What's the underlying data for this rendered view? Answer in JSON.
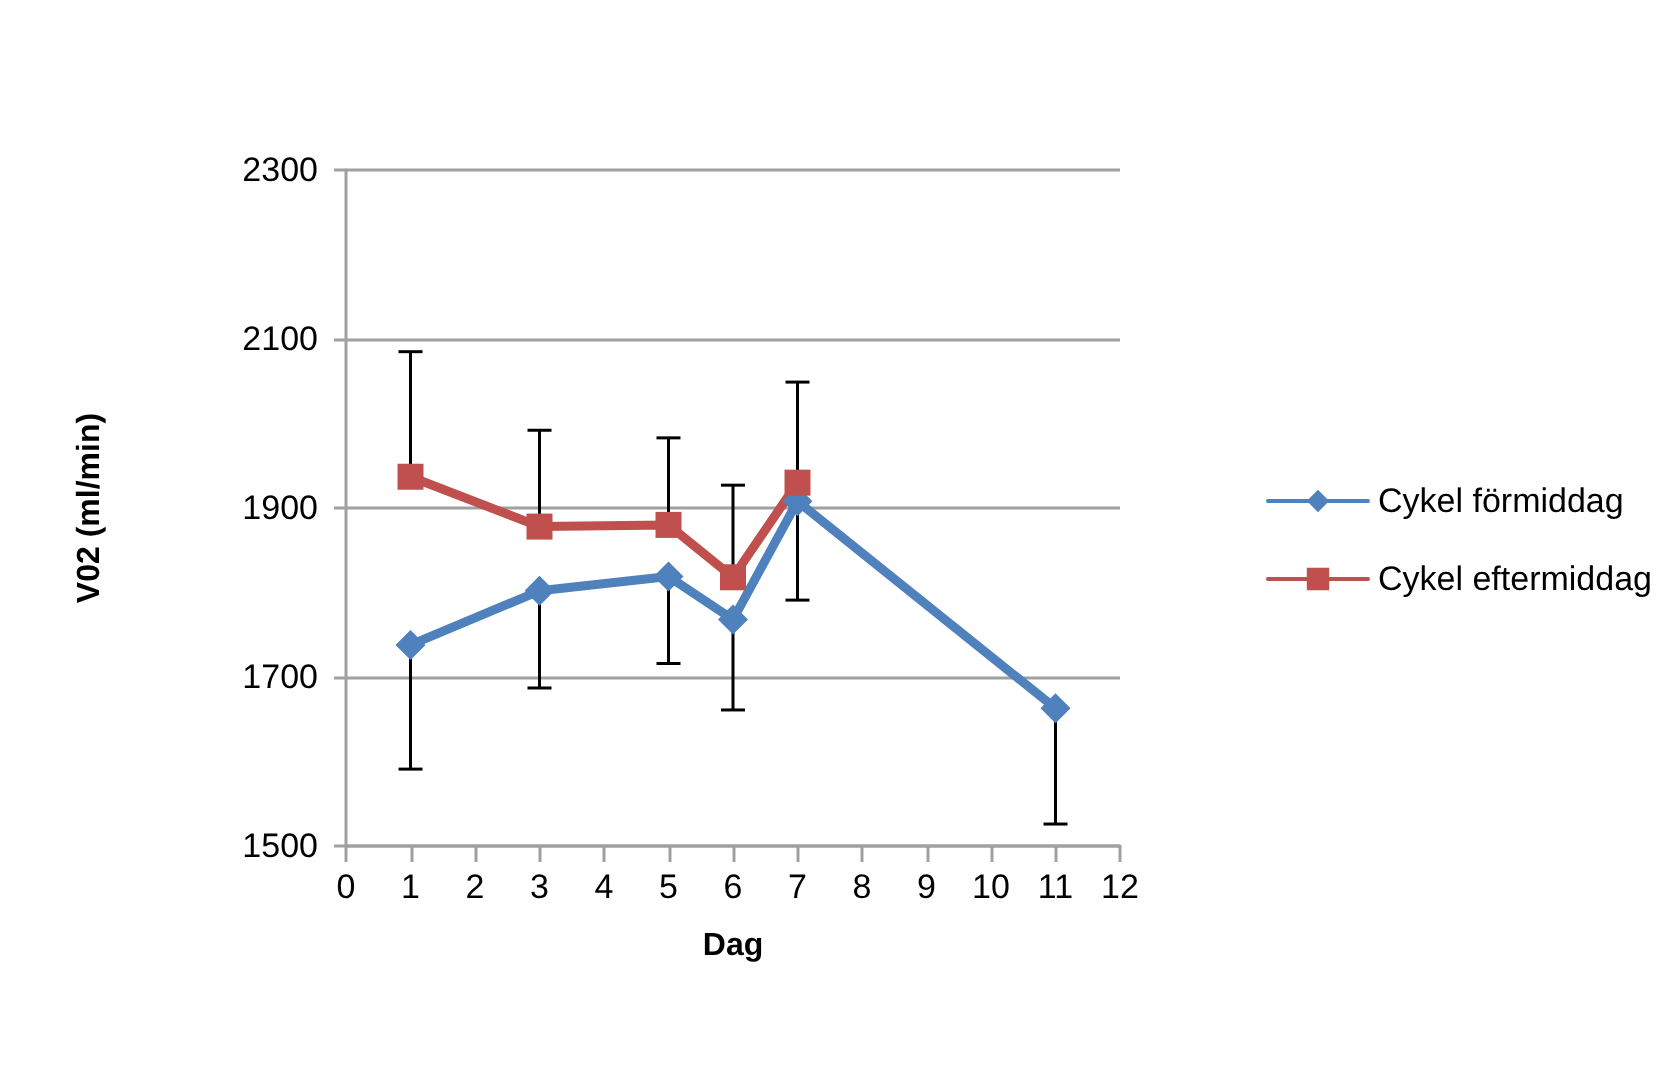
{
  "chart_data": {
    "type": "line",
    "xlabel": "Dag",
    "ylabel": "V02 (ml/min)",
    "x": [
      1,
      3,
      5,
      6,
      7,
      11
    ],
    "series": [
      {
        "name": "Cykel förmiddag",
        "color": "#4f81bd",
        "marker": "diamond",
        "values": [
          1738,
          1802,
          1819,
          1768,
          1908,
          1663
        ],
        "errors": [
          [
            1591,
            1738
          ],
          [
            1687,
            1802
          ],
          [
            1716,
            1819
          ],
          [
            1661,
            1768
          ],
          [
            1791,
            1908
          ],
          [
            1526,
            1663
          ]
        ]
      },
      {
        "name": "Cykel eftermiddag",
        "color": "#c0504d",
        "marker": "square",
        "x": [
          1,
          3,
          5,
          6,
          7
        ],
        "values": [
          1937,
          1878,
          1880,
          1818,
          1930
        ],
        "errors": [
          [
            1937,
            2085
          ],
          [
            1878,
            1992
          ],
          [
            1880,
            1983
          ],
          [
            1818,
            1927
          ],
          [
            1930,
            2049
          ]
        ]
      }
    ],
    "xlim": [
      0,
      12
    ],
    "xticks": [
      0,
      1,
      2,
      3,
      4,
      5,
      6,
      7,
      8,
      9,
      10,
      11,
      12
    ],
    "ylim": [
      1500,
      2300
    ],
    "yticks": [
      1500,
      1700,
      1900,
      2100,
      2300
    ],
    "grid": "y",
    "legend": "right"
  }
}
